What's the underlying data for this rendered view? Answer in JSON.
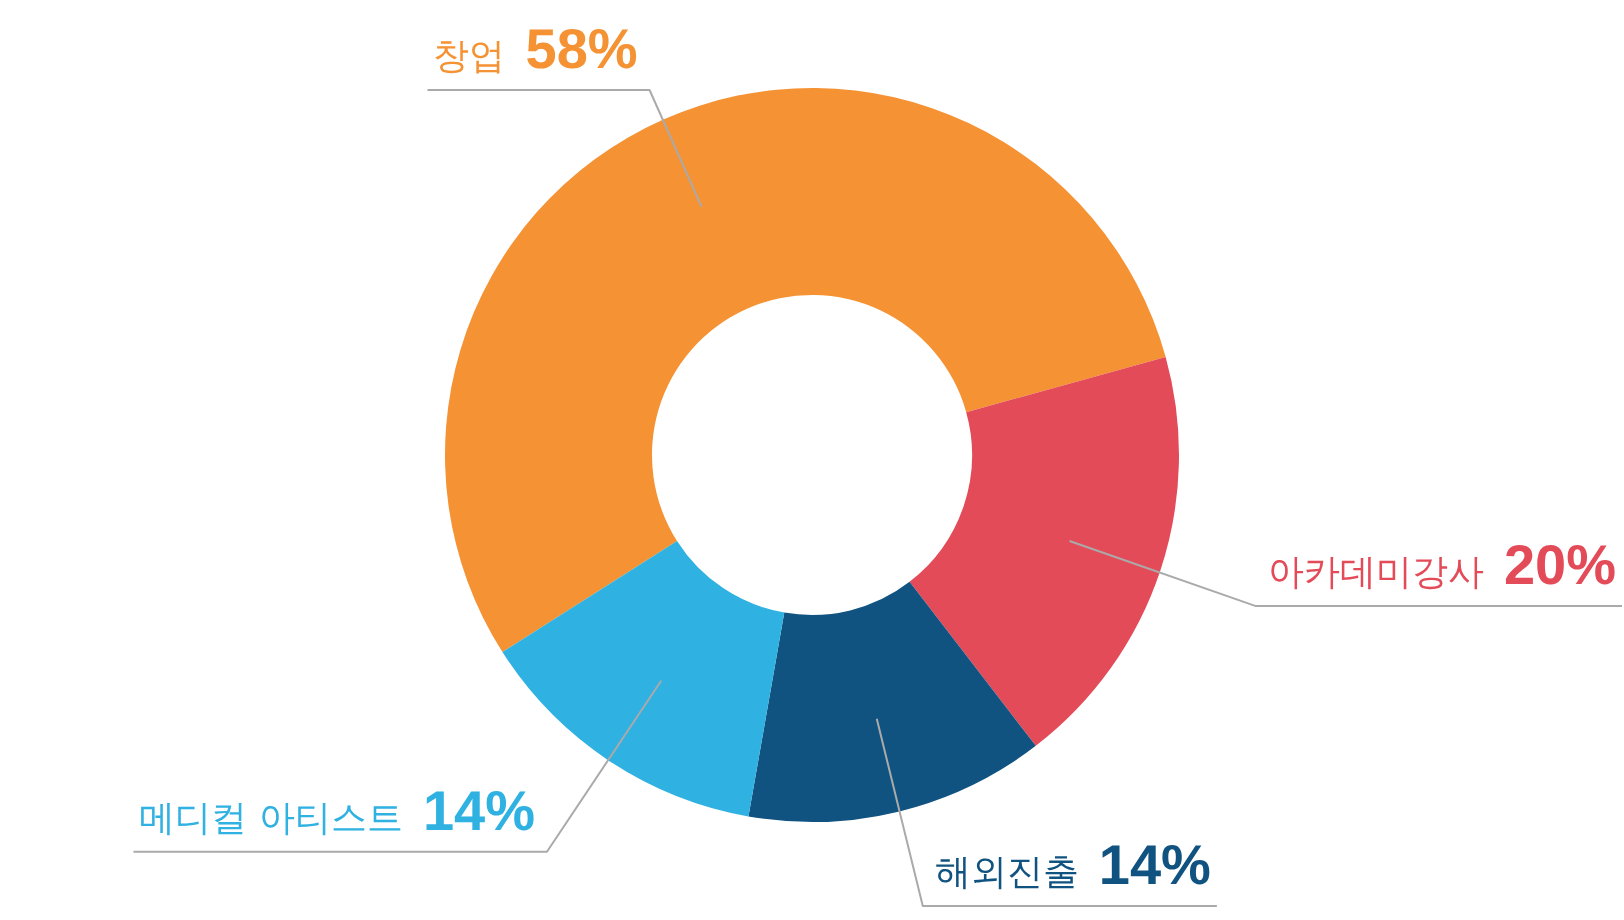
{
  "chart_data": {
    "type": "donut",
    "categories": [
      "창업",
      "아카데미강사",
      "해외진출",
      "메디컬 아티스트"
    ],
    "values": [
      58,
      20,
      14,
      14
    ],
    "value_labels": [
      "58%",
      "20%",
      "14%",
      "14%"
    ],
    "colors": [
      "#f59233",
      "#e44b59",
      "#105380",
      "#2fb1e2"
    ]
  }
}
